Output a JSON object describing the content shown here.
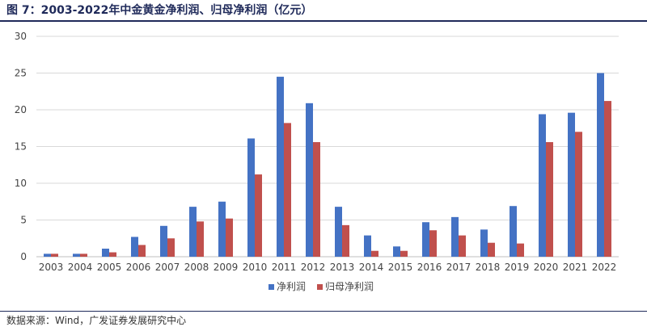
{
  "title": "图 7：2003-2022年中金黄金净利润、归母净利润（亿元）",
  "source": "数据来源：Wind，广发证券发展研究中心",
  "colors": {
    "series1": "#4472c4",
    "series2": "#c0504d",
    "grid": "#d9d9d9",
    "axis": "#bfbfbf",
    "header": "#1f2a5a"
  },
  "chart_data": {
    "type": "bar",
    "title": "",
    "xlabel": "",
    "ylabel": "",
    "ylim": [
      0,
      30
    ],
    "yticks": [
      0,
      5,
      10,
      15,
      20,
      25,
      30
    ],
    "grid": true,
    "legend_position": "bottom-center",
    "categories": [
      "2003",
      "2004",
      "2005",
      "2006",
      "2007",
      "2008",
      "2009",
      "2010",
      "2011",
      "2012",
      "2013",
      "2014",
      "2015",
      "2016",
      "2017",
      "2018",
      "2019",
      "2020",
      "2021",
      "2022"
    ],
    "series": [
      {
        "name": "净利润",
        "color": "#4472c4",
        "values": [
          0.4,
          0.4,
          1.1,
          2.7,
          4.2,
          6.8,
          7.5,
          16.1,
          24.5,
          20.9,
          6.8,
          2.9,
          1.4,
          4.7,
          5.4,
          3.7,
          6.9,
          19.4,
          19.6,
          25.0
        ]
      },
      {
        "name": "归母净利润",
        "color": "#c0504d",
        "values": [
          0.4,
          0.4,
          0.6,
          1.6,
          2.5,
          4.8,
          5.2,
          11.2,
          18.2,
          15.6,
          4.3,
          0.8,
          0.8,
          3.6,
          2.9,
          1.9,
          1.8,
          15.6,
          17.0,
          21.2
        ]
      }
    ]
  }
}
